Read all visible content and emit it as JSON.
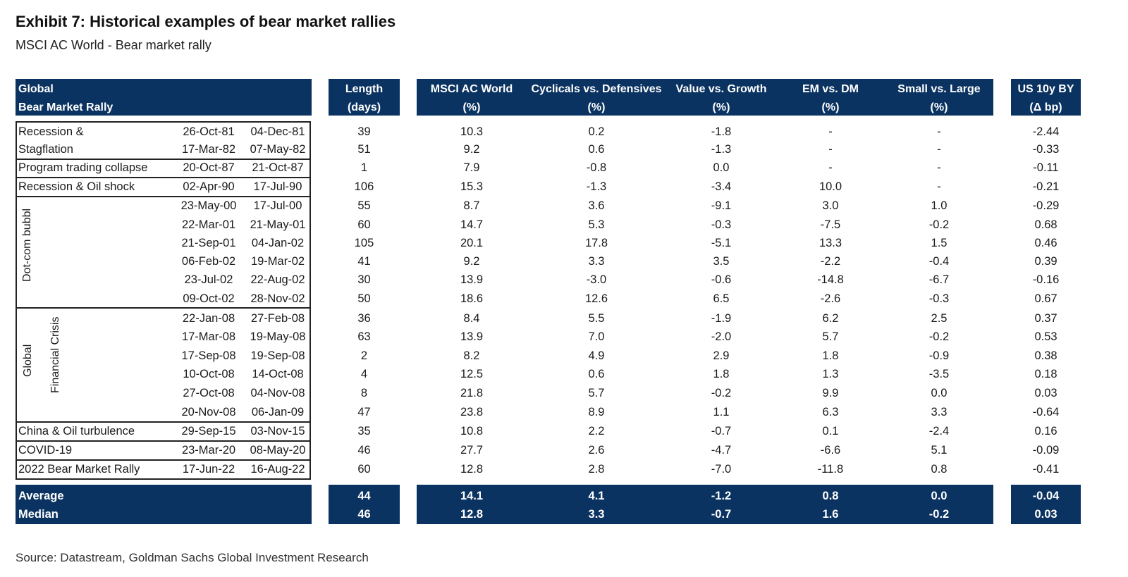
{
  "title": "Exhibit 7: Historical examples of bear market rallies",
  "subtitle": "MSCI AC World - Bear market rally",
  "source": "Source: Datastream, Goldman Sachs Global Investment Research",
  "headers": {
    "global_l1": "Global",
    "global_l2": "Bear Market Rally",
    "length_l1": "Length",
    "length_l2": "(days)",
    "msci_l1": "MSCI AC World",
    "msci_l2": "(%)",
    "cyc_l1": "Cyclicals vs. Defensives",
    "cyc_l2": "(%)",
    "val_l1": "Value vs. Growth",
    "val_l2": "(%)",
    "em_l1": "EM vs. DM",
    "em_l2": "(%)",
    "small_l1": "Small vs. Large",
    "small_l2": "(%)",
    "us_l1": "US 10y BY",
    "us_l2": "(Δ bp)"
  },
  "groups": {
    "recession_l1": "Recession &",
    "recession_l2": "Stagflation",
    "program": "Program trading collapse",
    "oil_shock": "Recession & Oil shock",
    "dotcom": "Dot-com bubbl",
    "gfc_l1": "Global",
    "gfc_l2": "Financial Crisis",
    "china": "China & Oil turbulence",
    "covid": "COVID-19",
    "rally2022": "2022 Bear Market Rally"
  },
  "rows": [
    {
      "start": "26-Oct-81",
      "end": "04-Dec-81",
      "length": "39",
      "msci": "10.3",
      "cyc": "0.2",
      "val": "-1.8",
      "em": "-",
      "small": "-",
      "us": "-2.44"
    },
    {
      "start": "17-Mar-82",
      "end": "07-May-82",
      "length": "51",
      "msci": "9.2",
      "cyc": "0.6",
      "val": "-1.3",
      "em": "-",
      "small": "-",
      "us": "-0.33"
    },
    {
      "start": "20-Oct-87",
      "end": "21-Oct-87",
      "length": "1",
      "msci": "7.9",
      "cyc": "-0.8",
      "val": "0.0",
      "em": "-",
      "small": "-",
      "us": "-0.11"
    },
    {
      "start": "02-Apr-90",
      "end": "17-Jul-90",
      "length": "106",
      "msci": "15.3",
      "cyc": "-1.3",
      "val": "-3.4",
      "em": "10.0",
      "small": "-",
      "us": "-0.21"
    },
    {
      "start": "23-May-00",
      "end": "17-Jul-00",
      "length": "55",
      "msci": "8.7",
      "cyc": "3.6",
      "val": "-9.1",
      "em": "3.0",
      "small": "1.0",
      "us": "-0.29"
    },
    {
      "start": "22-Mar-01",
      "end": "21-May-01",
      "length": "60",
      "msci": "14.7",
      "cyc": "5.3",
      "val": "-0.3",
      "em": "-7.5",
      "small": "-0.2",
      "us": "0.68"
    },
    {
      "start": "21-Sep-01",
      "end": "04-Jan-02",
      "length": "105",
      "msci": "20.1",
      "cyc": "17.8",
      "val": "-5.1",
      "em": "13.3",
      "small": "1.5",
      "us": "0.46"
    },
    {
      "start": "06-Feb-02",
      "end": "19-Mar-02",
      "length": "41",
      "msci": "9.2",
      "cyc": "3.3",
      "val": "3.5",
      "em": "-2.2",
      "small": "-0.4",
      "us": "0.39"
    },
    {
      "start": "23-Jul-02",
      "end": "22-Aug-02",
      "length": "30",
      "msci": "13.9",
      "cyc": "-3.0",
      "val": "-0.6",
      "em": "-14.8",
      "small": "-6.7",
      "us": "-0.16"
    },
    {
      "start": "09-Oct-02",
      "end": "28-Nov-02",
      "length": "50",
      "msci": "18.6",
      "cyc": "12.6",
      "val": "6.5",
      "em": "-2.6",
      "small": "-0.3",
      "us": "0.67"
    },
    {
      "start": "22-Jan-08",
      "end": "27-Feb-08",
      "length": "36",
      "msci": "8.4",
      "cyc": "5.5",
      "val": "-1.9",
      "em": "6.2",
      "small": "2.5",
      "us": "0.37"
    },
    {
      "start": "17-Mar-08",
      "end": "19-May-08",
      "length": "63",
      "msci": "13.9",
      "cyc": "7.0",
      "val": "-2.0",
      "em": "5.7",
      "small": "-0.2",
      "us": "0.53"
    },
    {
      "start": "17-Sep-08",
      "end": "19-Sep-08",
      "length": "2",
      "msci": "8.2",
      "cyc": "4.9",
      "val": "2.9",
      "em": "1.8",
      "small": "-0.9",
      "us": "0.38"
    },
    {
      "start": "10-Oct-08",
      "end": "14-Oct-08",
      "length": "4",
      "msci": "12.5",
      "cyc": "0.6",
      "val": "1.8",
      "em": "1.3",
      "small": "-3.5",
      "us": "0.18"
    },
    {
      "start": "27-Oct-08",
      "end": "04-Nov-08",
      "length": "8",
      "msci": "21.8",
      "cyc": "5.7",
      "val": "-0.2",
      "em": "9.9",
      "small": "0.0",
      "us": "0.03"
    },
    {
      "start": "20-Nov-08",
      "end": "06-Jan-09",
      "length": "47",
      "msci": "23.8",
      "cyc": "8.9",
      "val": "1.1",
      "em": "6.3",
      "small": "3.3",
      "us": "-0.64"
    },
    {
      "start": "29-Sep-15",
      "end": "03-Nov-15",
      "length": "35",
      "msci": "10.8",
      "cyc": "2.2",
      "val": "-0.7",
      "em": "0.1",
      "small": "-2.4",
      "us": "0.16"
    },
    {
      "start": "23-Mar-20",
      "end": "08-May-20",
      "length": "46",
      "msci": "27.7",
      "cyc": "2.6",
      "val": "-4.7",
      "em": "-6.6",
      "small": "5.1",
      "us": "-0.09"
    },
    {
      "start": "17-Jun-22",
      "end": "16-Aug-22",
      "length": "60",
      "msci": "12.8",
      "cyc": "2.8",
      "val": "-7.0",
      "em": "-11.8",
      "small": "0.8",
      "us": "-0.41"
    }
  ],
  "footer": [
    {
      "label": "Average",
      "length": "44",
      "msci": "14.1",
      "cyc": "4.1",
      "val": "-1.2",
      "em": "0.8",
      "small": "0.0",
      "us": "-0.04"
    },
    {
      "label": "Median",
      "length": "46",
      "msci": "12.8",
      "cyc": "3.3",
      "val": "-0.7",
      "em": "1.6",
      "small": "-0.2",
      "us": "0.03"
    }
  ]
}
